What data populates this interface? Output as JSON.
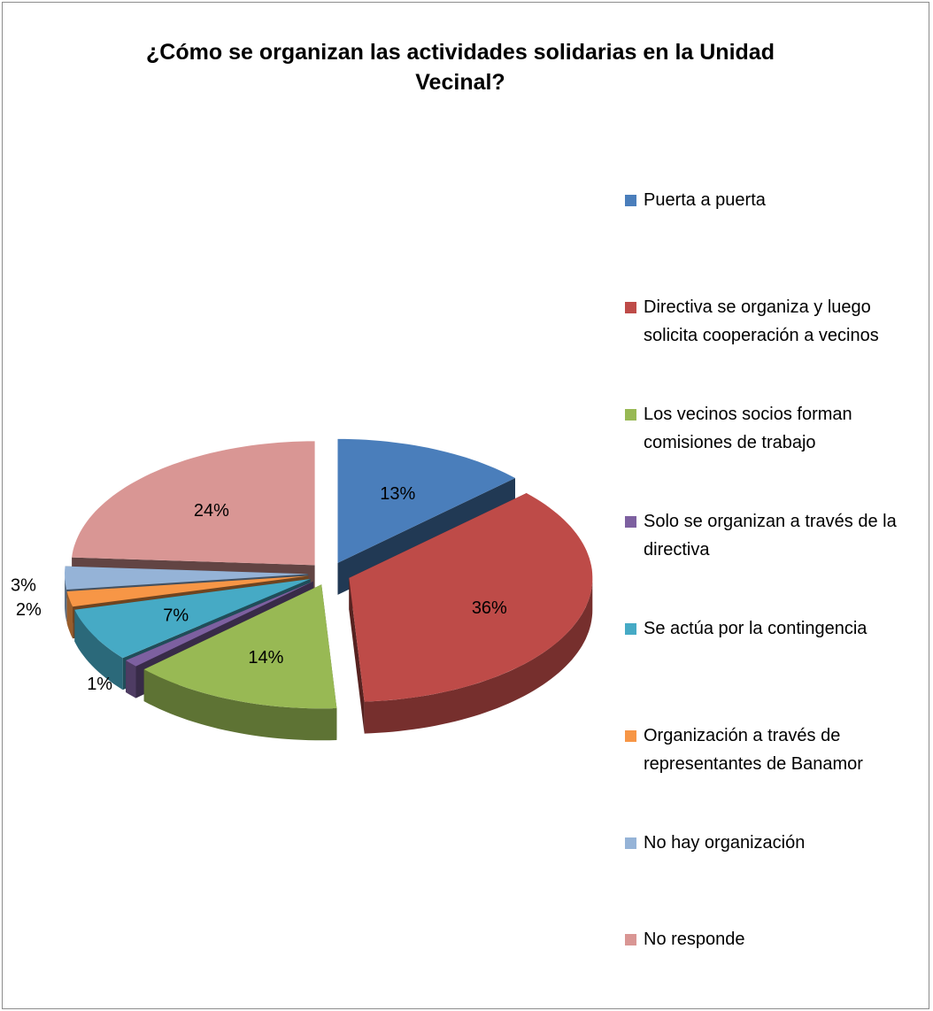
{
  "chart_data": {
    "type": "pie3d",
    "title": "¿Cómo se organizan las actividades solidarias en la Unidad Vecinal?",
    "categories": [
      "Puerta a puerta",
      "Directiva se organiza y luego solicita cooperación a vecinos",
      "Los vecinos socios forman comisiones de trabajo",
      "Solo se organizan a través de la directiva",
      "Se actúa por la contingencia",
      "Organización a través de representantes de Banamor",
      "No hay organización",
      "No responde"
    ],
    "values": [
      13,
      36,
      14,
      1,
      7,
      2,
      3,
      24
    ],
    "value_labels": [
      "13%",
      "36%",
      "14%",
      "1%",
      "7%",
      "2%",
      "3%",
      "24%"
    ],
    "colors": [
      "#4a7ebb",
      "#be4b48",
      "#98b954",
      "#7d60a0",
      "#46aac5",
      "#f79646",
      "#95b3d7",
      "#d99694"
    ],
    "legend": "right"
  }
}
